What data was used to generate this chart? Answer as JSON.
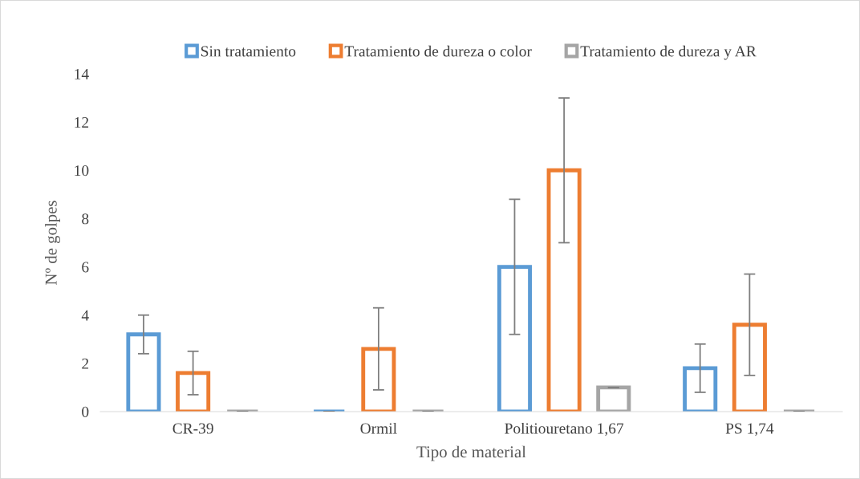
{
  "chart_data": {
    "type": "bar",
    "xlabel": "Tipo de material",
    "ylabel": "Nº de golpes",
    "categories": [
      "CR-39",
      "Ormil",
      "Politiouretano 1,67",
      "PS 1,74"
    ],
    "series": [
      {
        "name": "Sin tratamiento",
        "color": "#5b9bd5",
        "values": [
          3.2,
          0,
          6.0,
          1.8
        ],
        "errors": [
          0.8,
          0,
          2.8,
          1.0
        ]
      },
      {
        "name": "Tratamiento de dureza o color",
        "color": "#ed7d31",
        "values": [
          1.6,
          2.6,
          10.0,
          3.6
        ],
        "errors": [
          0.9,
          1.7,
          3.0,
          2.1
        ]
      },
      {
        "name": "Tratamiento de dureza y AR",
        "color": "#a5a5a5",
        "values": [
          0,
          0,
          1.0,
          0
        ],
        "errors": [
          0,
          0,
          0,
          0
        ]
      }
    ],
    "ylim": [
      0,
      14
    ],
    "yticks": [
      0,
      2,
      4,
      6,
      8,
      10,
      12,
      14
    ],
    "grid": false,
    "legend": "top"
  }
}
